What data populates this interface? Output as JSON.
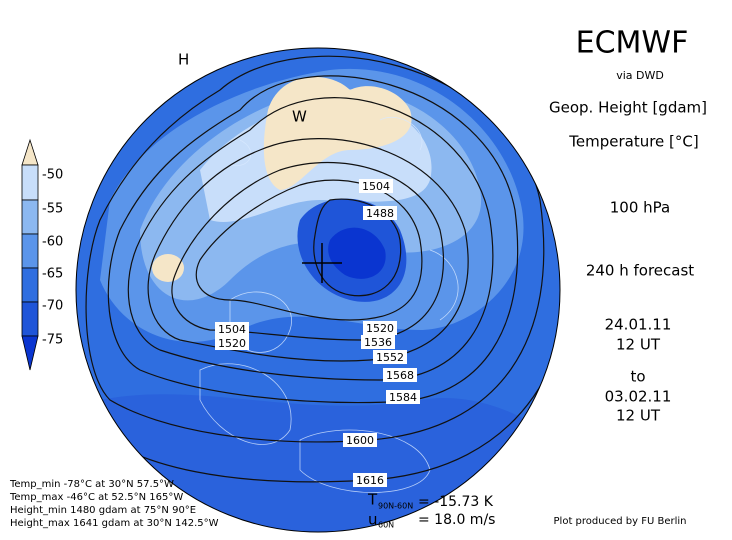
{
  "header": {
    "title": "ECMWF",
    "source": "via DWD",
    "parameter_1": "Geop. Height [gdam]",
    "parameter_2": "Temperature [°C]",
    "level": "100 hPa",
    "forecast": "240 h forecast",
    "start_date": "24.01.11",
    "start_time": "12 UT",
    "to": "to",
    "end_date": "03.02.11",
    "end_time": "12 UT"
  },
  "legend": {
    "labels": [
      "-50",
      "-55",
      "-60",
      "-65",
      "-70",
      "-75"
    ]
  },
  "map": {
    "labels": [
      "H",
      "W"
    ],
    "contour_labels": [
      1504,
      1488,
      1504,
      1520,
      1520,
      1536,
      1552,
      1568,
      1584,
      1600,
      1616
    ]
  },
  "stats": [
    "Temp_min -78°C at 30°N 57.5°W",
    "Temp_max -46°C at 52.5°N 165°W",
    "Height_min 1480 gdam at 75°N 90°E",
    "Height_max 1641 gdam at 30°N 142.5°W"
  ],
  "indices": {
    "t_symbol": "T",
    "t_range": "90N-60N",
    "t_value": "= -15.73 K",
    "u_symbol": "u",
    "u_range": "60N",
    "u_value": "= 18.0 m/s"
  },
  "credit": "Plot produced by FU Berlin"
}
